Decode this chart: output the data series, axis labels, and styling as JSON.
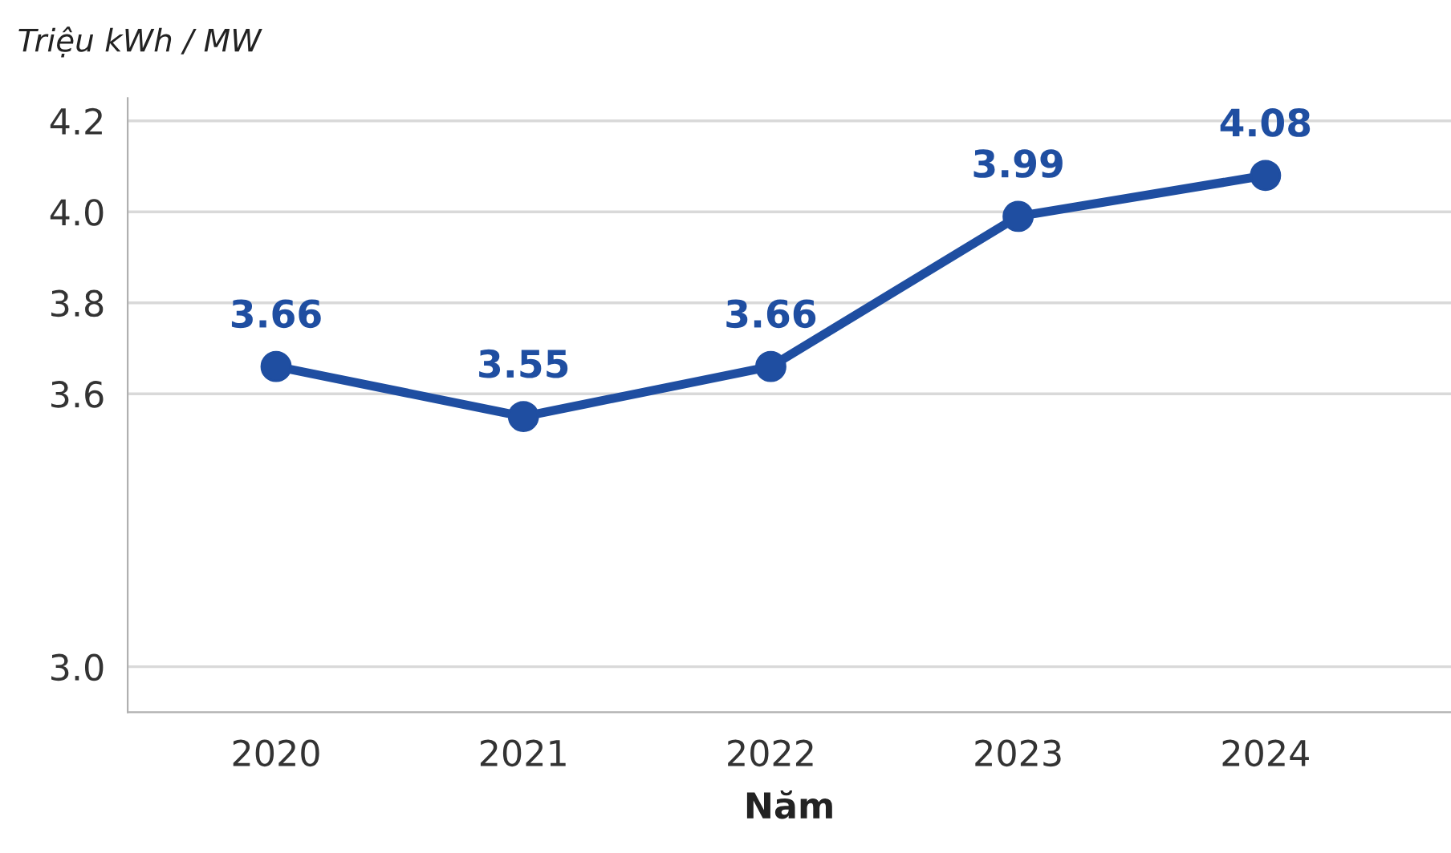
{
  "chart_data": {
    "type": "line",
    "xlabel": "Năm",
    "ylabel": "Triệu kWh / MW",
    "categories": [
      "2020",
      "2021",
      "2022",
      "2023",
      "2024"
    ],
    "series": [
      {
        "color": "#1f4ea1",
        "values": [
          3.66,
          3.55,
          3.66,
          3.99,
          4.08
        ]
      }
    ],
    "ylim": [
      2.9,
      4.25
    ],
    "yticks": [
      {
        "value": 3,
        "label": "3.0"
      },
      3.6,
      3.8,
      {
        "value": 4,
        "label": "4.0"
      },
      4.2
    ],
    "grid": "y",
    "marker": "circle",
    "line_style": "solid",
    "data_labels": true
  }
}
